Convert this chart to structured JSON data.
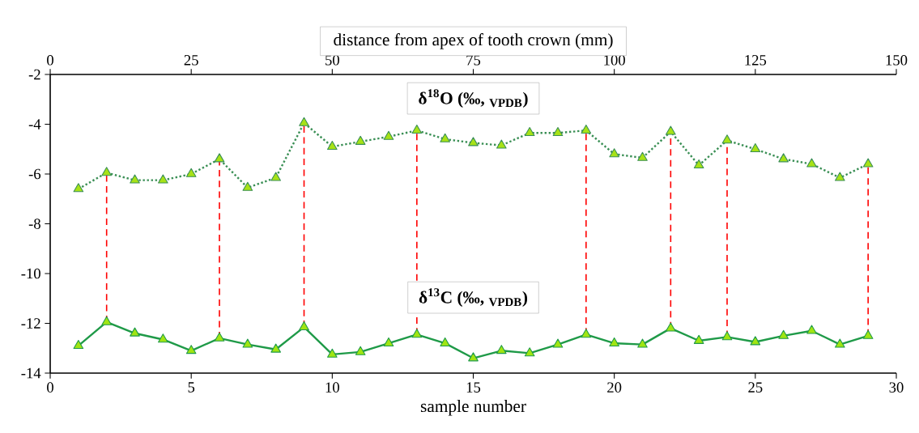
{
  "chart_data": {
    "type": "line",
    "xlabel": "sample number",
    "x2label": "distance from apex of tooth crown (mm)",
    "x": [
      1,
      2,
      3,
      4,
      5,
      6,
      7,
      8,
      9,
      10,
      11,
      12,
      13,
      14,
      15,
      16,
      17,
      18,
      19,
      20,
      21,
      22,
      23,
      24,
      25,
      26,
      27,
      28,
      29
    ],
    "xlim": [
      0,
      30
    ],
    "xticks": [
      0,
      5,
      10,
      15,
      20,
      25,
      30
    ],
    "x2lim": [
      0,
      150
    ],
    "x2ticks": [
      0,
      25,
      50,
      75,
      100,
      125,
      150
    ],
    "ylim": [
      -14,
      -2
    ],
    "yticks": [
      -14,
      -12,
      -10,
      -8,
      -6,
      -4,
      -2
    ],
    "marker": "triangle",
    "series": [
      {
        "name": "δ$^{18}$O (‰, $_{VPDB}$)",
        "color": "#3a8f55",
        "line_style": "dotted",
        "values": [
          -6.6,
          -5.95,
          -6.25,
          -6.25,
          -6.0,
          -5.4,
          -6.55,
          -6.15,
          -3.95,
          -4.9,
          -4.7,
          -4.5,
          -4.25,
          -4.6,
          -4.75,
          -4.85,
          -4.35,
          -4.35,
          -4.25,
          -5.2,
          -5.35,
          -4.3,
          -5.65,
          -4.65,
          -5.0,
          -5.4,
          -5.6,
          -6.15,
          -5.6
        ]
      },
      {
        "name": "δ$^{13}$C (‰, $_{VPDB}$)",
        "color": "#1f9a48",
        "line_style": "solid",
        "values": [
          -12.9,
          -11.95,
          -12.4,
          -12.65,
          -13.1,
          -12.6,
          -12.85,
          -13.05,
          -12.15,
          -13.25,
          -13.15,
          -12.8,
          -12.45,
          -12.8,
          -13.4,
          -13.1,
          -13.2,
          -12.85,
          -12.45,
          -12.8,
          -12.85,
          -12.2,
          -12.7,
          -12.55,
          -12.75,
          -12.5,
          -12.3,
          -12.85,
          -12.5
        ]
      },
      {
        "type": "line",
        "color": "#ff0000",
        "line_style": "dashed",
        "marker": "none",
        "x": [
          2,
          2
        ],
        "values": [
          -11.95,
          -5.95
        ]
      },
      {
        "type": "line",
        "color": "#ff0000",
        "line_style": "dashed",
        "marker": "none",
        "x": [
          6,
          6
        ],
        "values": [
          -12.6,
          -5.4
        ]
      },
      {
        "type": "line",
        "color": "#ff0000",
        "line_style": "dashed",
        "marker": "none",
        "x": [
          9,
          9
        ],
        "values": [
          -12.15,
          -3.95
        ]
      },
      {
        "type": "line",
        "color": "#ff0000",
        "line_style": "dashed",
        "marker": "none",
        "x": [
          13,
          13
        ],
        "values": [
          -12.45,
          -4.25
        ]
      },
      {
        "type": "line",
        "color": "#ff0000",
        "line_style": "dashed",
        "marker": "none",
        "x": [
          19,
          19
        ],
        "values": [
          -12.45,
          -4.25
        ]
      },
      {
        "type": "line",
        "color": "#ff0000",
        "line_style": "dashed",
        "marker": "none",
        "x": [
          22,
          22
        ],
        "values": [
          -12.2,
          -4.3
        ]
      },
      {
        "type": "line",
        "color": "#ff0000",
        "line_style": "dashed",
        "marker": "none",
        "x": [
          24,
          24
        ],
        "values": [
          -12.55,
          -4.65
        ]
      },
      {
        "type": "line",
        "color": "#ff0000",
        "line_style": "dashed",
        "marker": "none",
        "x": [
          29,
          29
        ],
        "values": [
          -12.5,
          -5.6
        ]
      }
    ]
  }
}
